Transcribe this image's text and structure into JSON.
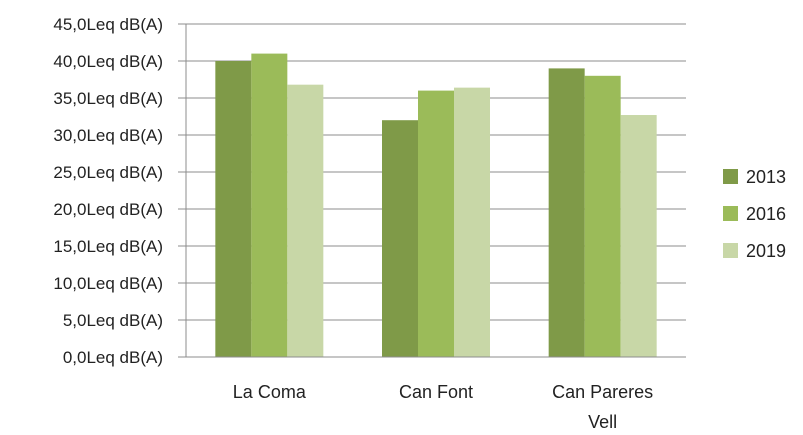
{
  "chart_data": {
    "type": "bar",
    "categories": [
      [
        "La Coma"
      ],
      [
        "Can Font"
      ],
      [
        "Can Pareres",
        "Vell"
      ]
    ],
    "series": [
      {
        "name": "2013",
        "color": "#7f9a48",
        "values": [
          40.0,
          32.0,
          39.0
        ]
      },
      {
        "name": "2016",
        "color": "#9bbb59",
        "values": [
          41.0,
          36.0,
          38.0
        ]
      },
      {
        "name": "2019",
        "color": "#c8d7a7",
        "values": [
          36.8,
          36.4,
          32.7
        ]
      }
    ],
    "ylim": [
      0,
      45
    ],
    "yticks": [
      {
        "value": 45,
        "label": "45,0Leq dB(A)"
      },
      {
        "value": 40,
        "label": "40,0Leq dB(A)"
      },
      {
        "value": 35,
        "label": "35,0Leq dB(A)"
      },
      {
        "value": 30,
        "label": "30,0Leq dB(A)"
      },
      {
        "value": 25,
        "label": "25,0Leq dB(A)"
      },
      {
        "value": 20,
        "label": "20,0Leq dB(A)"
      },
      {
        "value": 15,
        "label": "15,0Leq dB(A)"
      },
      {
        "value": 10,
        "label": "10,0Leq dB(A)"
      },
      {
        "value": 5,
        "label": "5,0Leq dB(A)"
      },
      {
        "value": 0,
        "label": "0,0Leq dB(A)"
      }
    ],
    "grid": true,
    "legend": "right",
    "title": "",
    "xlabel": "",
    "ylabel": ""
  }
}
